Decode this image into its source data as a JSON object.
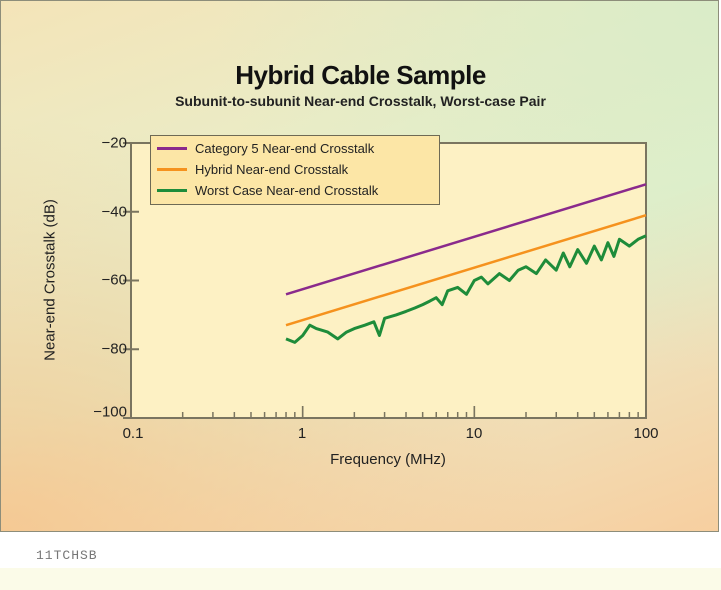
{
  "figure": {
    "title": "Hybrid Cable Sample",
    "subtitle": "Subunit-to-subunit Near-end Crosstalk, Worst-case Pair",
    "caption": "11TCHSB"
  },
  "axes": {
    "xlabel": "Frequency (MHz)",
    "ylabel": "Near-end Crosstalk (dB)",
    "xticks": [
      "0.1",
      "1",
      "10",
      "100"
    ],
    "yticks": [
      "−20",
      "−40",
      "−60",
      "−80",
      "−100"
    ]
  },
  "legend": {
    "items": [
      {
        "label": "Category 5 Near-end Crosstalk",
        "color": "#8a2a8c"
      },
      {
        "label": "Hybrid Near-end Crosstalk",
        "color": "#f5921e"
      },
      {
        "label": "Worst Case Near-end Crosstalk",
        "color": "#1e8c3a"
      }
    ]
  },
  "colors": {
    "plot_bg": "#fdf1c4",
    "axis": "#7a7560"
  },
  "chart_data": {
    "type": "line",
    "title": "Hybrid Cable Sample",
    "subtitle": "Subunit-to-subunit Near-end Crosstalk, Worst-case Pair",
    "xlabel": "Frequency (MHz)",
    "ylabel": "Near-end Crosstalk (dB)",
    "xscale": "log",
    "xlim": [
      0.1,
      100
    ],
    "ylim": [
      -100,
      -20
    ],
    "xticks": [
      0.1,
      1,
      10,
      100
    ],
    "yticks": [
      -20,
      -40,
      -60,
      -80,
      -100
    ],
    "grid": false,
    "legend_position": "upper left",
    "series": [
      {
        "name": "Category 5 Near-end Crosstalk",
        "color": "#8a2a8c",
        "x": [
          0.8,
          100
        ],
        "y": [
          -64,
          -32
        ]
      },
      {
        "name": "Hybrid Near-end Crosstalk",
        "color": "#f5921e",
        "x": [
          0.8,
          100
        ],
        "y": [
          -73,
          -41
        ]
      },
      {
        "name": "Worst Case Near-end Crosstalk",
        "color": "#1e8c3a",
        "x": [
          0.8,
          0.9,
          1.0,
          1.1,
          1.2,
          1.4,
          1.6,
          1.8,
          2.0,
          2.3,
          2.6,
          2.8,
          3.0,
          3.5,
          4.0,
          4.5,
          5.0,
          5.5,
          6.0,
          6.5,
          7.0,
          8.0,
          9.0,
          10,
          11,
          12,
          14,
          16,
          18,
          20,
          23,
          26,
          30,
          33,
          36,
          40,
          45,
          50,
          55,
          60,
          65,
          70,
          80,
          90,
          100
        ],
        "y": [
          -77,
          -78,
          -76,
          -73,
          -74,
          -75,
          -77,
          -75,
          -74,
          -73,
          -72,
          -76,
          -71,
          -70,
          -69,
          -68,
          -67,
          -66,
          -65,
          -67,
          -63,
          -62,
          -64,
          -60,
          -59,
          -61,
          -58,
          -60,
          -57,
          -56,
          -58,
          -54,
          -57,
          -52,
          -56,
          -51,
          -55,
          -50,
          -54,
          -49,
          -53,
          -48,
          -50,
          -48,
          -47
        ]
      }
    ]
  }
}
